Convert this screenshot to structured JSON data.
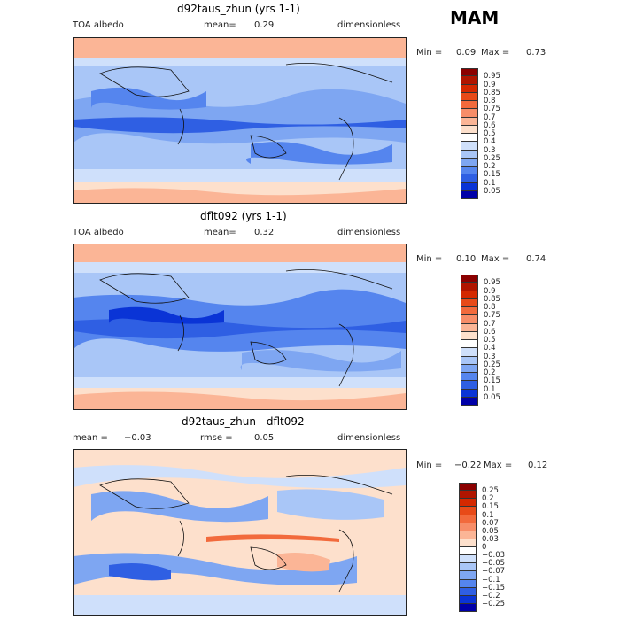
{
  "season": "MAM",
  "panels": [
    {
      "title": "d92taus_zhun (yrs 1-1)",
      "left_label": "TOA albedo",
      "mean_label": "mean=",
      "mean_value": "0.29",
      "units": "dimensionless",
      "min_label": "Min =",
      "min_value": "0.09",
      "max_label": "Max =",
      "max_value": "0.73",
      "levels": [
        "0.95",
        "0.9",
        "0.85",
        "0.8",
        "0.75",
        "0.7",
        "0.6",
        "0.5",
        "0.4",
        "0.3",
        "0.25",
        "0.2",
        "0.15",
        "0.1",
        "0.05"
      ],
      "colors": [
        "#8b0000",
        "#b01500",
        "#d42800",
        "#e84a18",
        "#f26a3c",
        "#f78d68",
        "#fbb596",
        "#fde0cc",
        "#ffffff",
        "#cfe0fb",
        "#a9c6f7",
        "#7ea6f2",
        "#5585ee",
        "#2f5fe3",
        "#0a34d6",
        "#0000a8"
      ]
    },
    {
      "title": "dflt092 (yrs 1-1)",
      "left_label": "TOA albedo",
      "mean_label": "mean=",
      "mean_value": "0.32",
      "units": "dimensionless",
      "min_label": "Min =",
      "min_value": "0.10",
      "max_label": "Max =",
      "max_value": "0.74",
      "levels": [
        "0.95",
        "0.9",
        "0.85",
        "0.8",
        "0.75",
        "0.7",
        "0.6",
        "0.5",
        "0.4",
        "0.3",
        "0.25",
        "0.2",
        "0.15",
        "0.1",
        "0.05"
      ],
      "colors": [
        "#8b0000",
        "#b01500",
        "#d42800",
        "#e84a18",
        "#f26a3c",
        "#f78d68",
        "#fbb596",
        "#fde0cc",
        "#ffffff",
        "#cfe0fb",
        "#a9c6f7",
        "#7ea6f2",
        "#5585ee",
        "#2f5fe3",
        "#0a34d6",
        "#0000a8"
      ]
    },
    {
      "title": "d92taus_zhun - dflt092",
      "left_label": "mean =",
      "left_value": "−0.03",
      "mid_label": "rmse =",
      "mid_value": "0.05",
      "units": "dimensionless",
      "min_label": "Min =",
      "min_value": "−0.22",
      "max_label": "Max =",
      "max_value": "0.12",
      "levels": [
        "0.25",
        "0.2",
        "0.15",
        "0.1",
        "0.07",
        "0.05",
        "0.03",
        "0",
        "−0.03",
        "−0.05",
        "−0.07",
        "−0.1",
        "−0.15",
        "−0.2",
        "−0.25"
      ],
      "colors": [
        "#8b0000",
        "#b01500",
        "#d42800",
        "#e84a18",
        "#f26a3c",
        "#f78d68",
        "#fbb596",
        "#fde0cc",
        "#ffffff",
        "#cfe0fb",
        "#a9c6f7",
        "#7ea6f2",
        "#5585ee",
        "#2f5fe3",
        "#0a34d6",
        "#0000a8"
      ]
    }
  ]
}
